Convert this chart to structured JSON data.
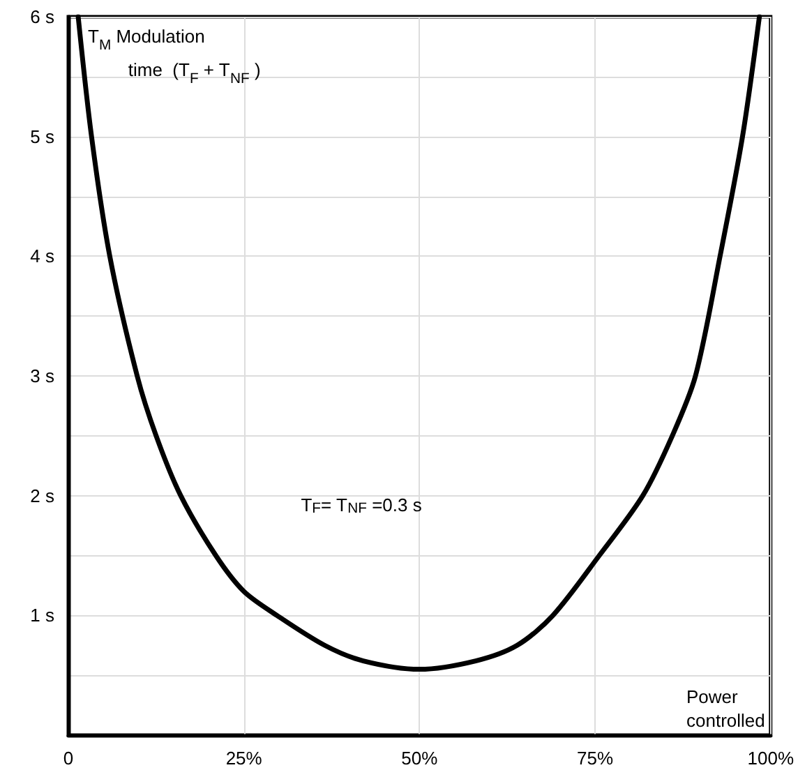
{
  "chart_data": {
    "type": "line",
    "ylabel": "T$_{M}$ Modulation\n        time  (T$_{F}$ + T$_{NF}$ )",
    "xlabel": "Power\ncontrolled",
    "annotations": [
      "T$_{F}$= T$_{NF}$ =0.3 s"
    ],
    "series": [
      {
        "color": "#000000",
        "x": [
          1.4,
          3.3,
          5.9,
          9.8,
          12.5,
          16,
          21,
          25,
          29.7,
          36.5,
          42,
          50,
          58,
          63.9,
          69,
          75.6,
          81.8,
          86,
          89.3,
          92.8,
          96,
          98.4
        ],
        "values": [
          6,
          5,
          4,
          3,
          2.5,
          2,
          1.5,
          1.2,
          1,
          0.75,
          0.62,
          0.55,
          0.62,
          0.75,
          1,
          1.5,
          2,
          2.5,
          3,
          4,
          5,
          6
        ]
      }
    ],
    "xlim": [
      0,
      100
    ],
    "ylim": [
      0,
      6
    ],
    "xticks": [
      {
        "value": 0,
        "label": "0"
      },
      {
        "value": 25,
        "label": "25%"
      },
      {
        "value": 50,
        "label": "50%"
      },
      {
        "value": 75,
        "label": "75%"
      },
      {
        "value": 100,
        "label": "100%"
      }
    ],
    "yticks": [
      {
        "value": 0,
        "label": null
      },
      {
        "value": 0.5,
        "label": null
      },
      {
        "value": 1,
        "label": "1 s"
      },
      {
        "value": 1.5,
        "label": null
      },
      {
        "value": 2,
        "label": "2 s"
      },
      {
        "value": 2.5,
        "label": null
      },
      {
        "value": 3,
        "label": "3 s"
      },
      {
        "value": 3.5,
        "label": null
      },
      {
        "value": 4,
        "label": "4 s"
      },
      {
        "value": 4.5,
        "label": null
      },
      {
        "value": 5,
        "label": "5 s"
      },
      {
        "value": 5.5,
        "label": null
      },
      {
        "value": 6,
        "label": "6 s"
      }
    ],
    "grid": true,
    "marker": "none",
    "line_style": "solid"
  }
}
